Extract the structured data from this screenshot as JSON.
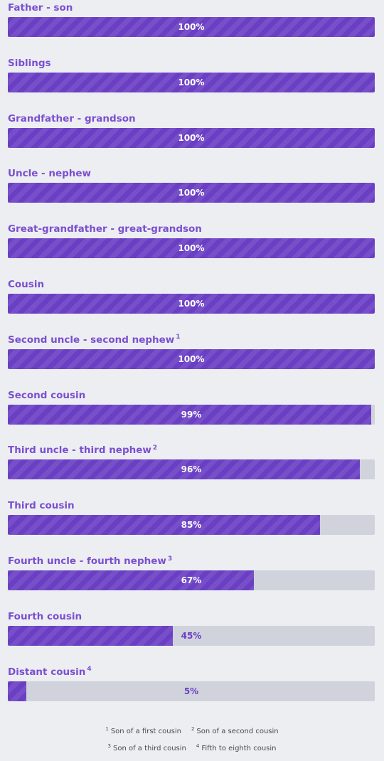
{
  "chart_data": {
    "type": "bar",
    "orientation": "horizontal",
    "title": "",
    "xlabel": "",
    "ylabel": "",
    "xlim": [
      0,
      100
    ],
    "unit": "%",
    "categories": [
      "Father - son",
      "Siblings",
      "Grandfather - grandson",
      "Uncle - nephew",
      "Great-grandfather - great-grandson",
      "Cousin",
      "Second uncle - second nephew",
      "Second cousin",
      "Third uncle - third nephew",
      "Third cousin",
      "Fourth uncle - fourth nephew",
      "Fourth cousin",
      "Distant cousin"
    ],
    "footnote_refs": [
      "",
      "",
      "",
      "",
      "",
      "",
      "1",
      "",
      "2",
      "",
      "3",
      "",
      "4"
    ],
    "values": [
      100,
      100,
      100,
      100,
      100,
      100,
      100,
      99,
      96,
      85,
      67,
      45,
      5
    ],
    "value_labels": [
      "100%",
      "100%",
      "100%",
      "100%",
      "100%",
      "100%",
      "100%",
      "99%",
      "96%",
      "85%",
      "67%",
      "45%",
      "5%"
    ],
    "colors": {
      "bar_fill": "#6a3fc4",
      "bar_track": "#d0d2dc",
      "label_text": "#7b4fd0",
      "value_text_on_bar": "#ffffff",
      "value_text_on_track": "#6a3fc4",
      "background": "#eceef1"
    },
    "legend": "none",
    "grid": false
  },
  "footnotes": [
    {
      "marker": "1",
      "text": "Son of a first cousin"
    },
    {
      "marker": "2",
      "text": "Son of a second cousin"
    },
    {
      "marker": "3",
      "text": "Son of a third cousin"
    },
    {
      "marker": "4",
      "text": "Fifth to eighth cousin"
    }
  ]
}
